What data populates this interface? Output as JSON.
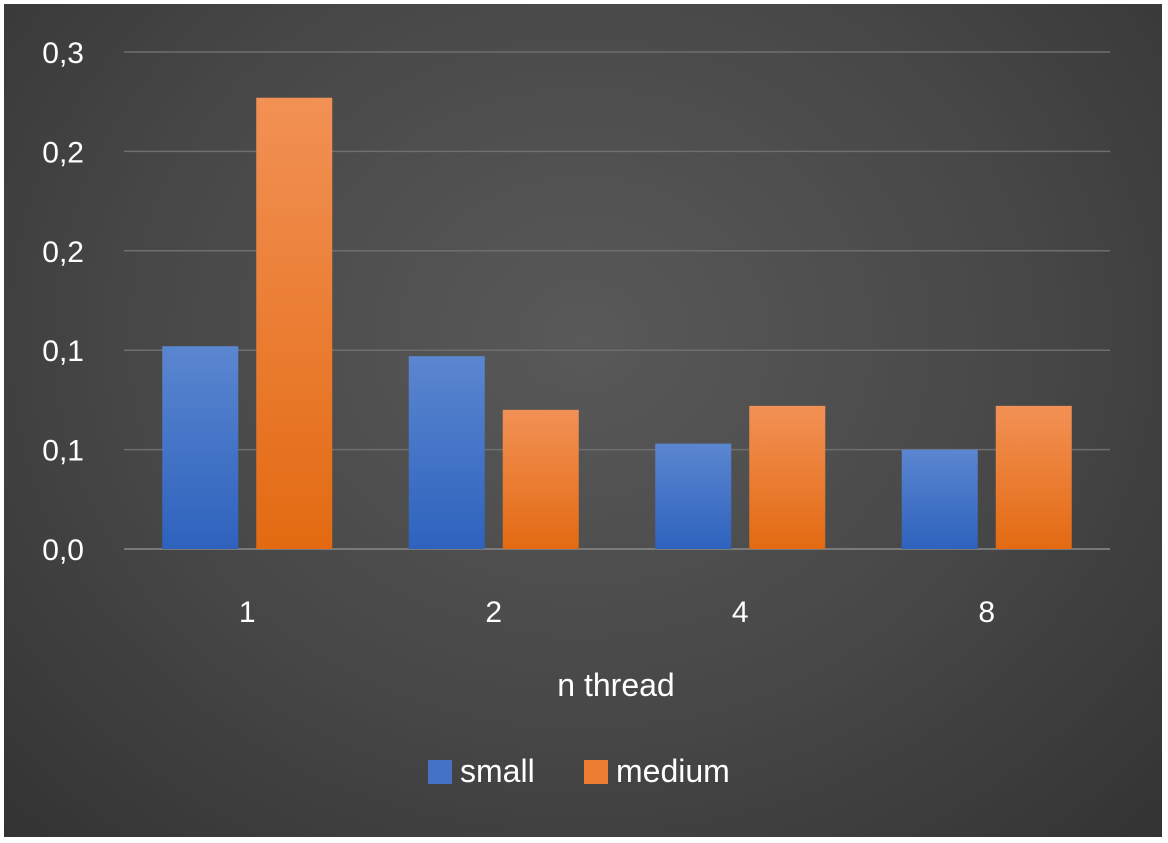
{
  "chart_data": {
    "type": "bar",
    "categories": [
      "1",
      "2",
      "4",
      "8"
    ],
    "series": [
      {
        "name": "small",
        "values": [
          0.102,
          0.097,
          0.053,
          0.05
        ],
        "color": "#4472C4"
      },
      {
        "name": "medium",
        "values": [
          0.227,
          0.07,
          0.072,
          0.072
        ],
        "color": "#ED7D31"
      }
    ],
    "xlabel": "n thread",
    "ylabel": "",
    "title": "",
    "ylim": [
      0,
      0.25
    ],
    "yticks": [
      0,
      0.05,
      0.1,
      0.15,
      0.2,
      0.25
    ],
    "ytick_labels": [
      "0,0",
      "0,1",
      "0,1",
      "0,2",
      "0,2",
      "0,3"
    ],
    "grid": true,
    "legend": "bottom"
  }
}
